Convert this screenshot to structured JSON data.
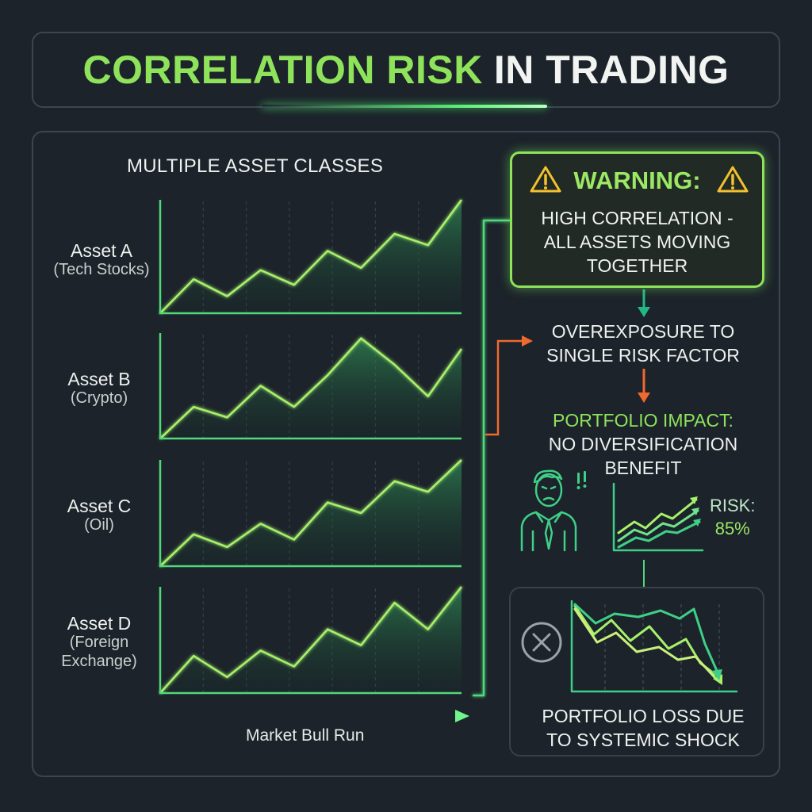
{
  "title": {
    "highlight": "CORRELATION RISK",
    "rest": "IN TRADING"
  },
  "left_section": {
    "title": "MULTIPLE ASSET CLASSES",
    "axis_label": "Market Bull Run",
    "assets": [
      {
        "name": "Asset A",
        "sub": [
          "(Tech Stocks)"
        ]
      },
      {
        "name": "Asset B",
        "sub": [
          "(Crypto)"
        ]
      },
      {
        "name": "Asset C",
        "sub": [
          "(Oil)"
        ]
      },
      {
        "name": "Asset D",
        "sub": [
          "(Foreign",
          "Exchange)"
        ]
      }
    ]
  },
  "warning": {
    "title": "WARNING:",
    "lines": [
      "HIGH CORRELATION -",
      "ALL ASSETS MOVING",
      "TOGETHER"
    ]
  },
  "overexposure": {
    "lines": [
      "OVEREXPOSURE TO",
      "SINGLE RISK FACTOR"
    ]
  },
  "impact": {
    "title": "PORTFOLIO IMPACT:",
    "lines": [
      "NO DIVERSIFICATION",
      "BENEFIT"
    ]
  },
  "risk": {
    "label": "RISK:",
    "value": "85%"
  },
  "loss": {
    "lines": [
      "PORTFOLIO LOSS DUE",
      "TO SYSTEMIC SHOCK"
    ]
  },
  "icons": [
    "warning-triangle-icon",
    "stressed-person-icon",
    "rising-chart-icon",
    "close-circle-icon",
    "falling-chart-icon"
  ],
  "colors": {
    "accent": "#8ee35a",
    "line": "#4fd97a",
    "arrow_orange": "#ef6a2c",
    "arrow_teal": "#22b884",
    "background": "#1c232b"
  },
  "chart_data": [
    {
      "type": "area",
      "series": [
        {
          "name": "Asset A",
          "values": [
            0,
            30,
            15,
            38,
            25,
            55,
            40,
            70,
            60,
            100
          ]
        }
      ]
    },
    {
      "type": "area",
      "series": [
        {
          "name": "Asset B",
          "values": [
            0,
            30,
            20,
            50,
            30,
            60,
            95,
            70,
            40,
            85
          ]
        }
      ]
    },
    {
      "type": "area",
      "series": [
        {
          "name": "Asset C",
          "values": [
            0,
            30,
            18,
            40,
            25,
            60,
            50,
            80,
            70,
            100
          ]
        }
      ]
    },
    {
      "type": "area",
      "series": [
        {
          "name": "Asset D",
          "values": [
            0,
            35,
            15,
            40,
            25,
            60,
            45,
            85,
            60,
            100
          ]
        }
      ]
    }
  ]
}
